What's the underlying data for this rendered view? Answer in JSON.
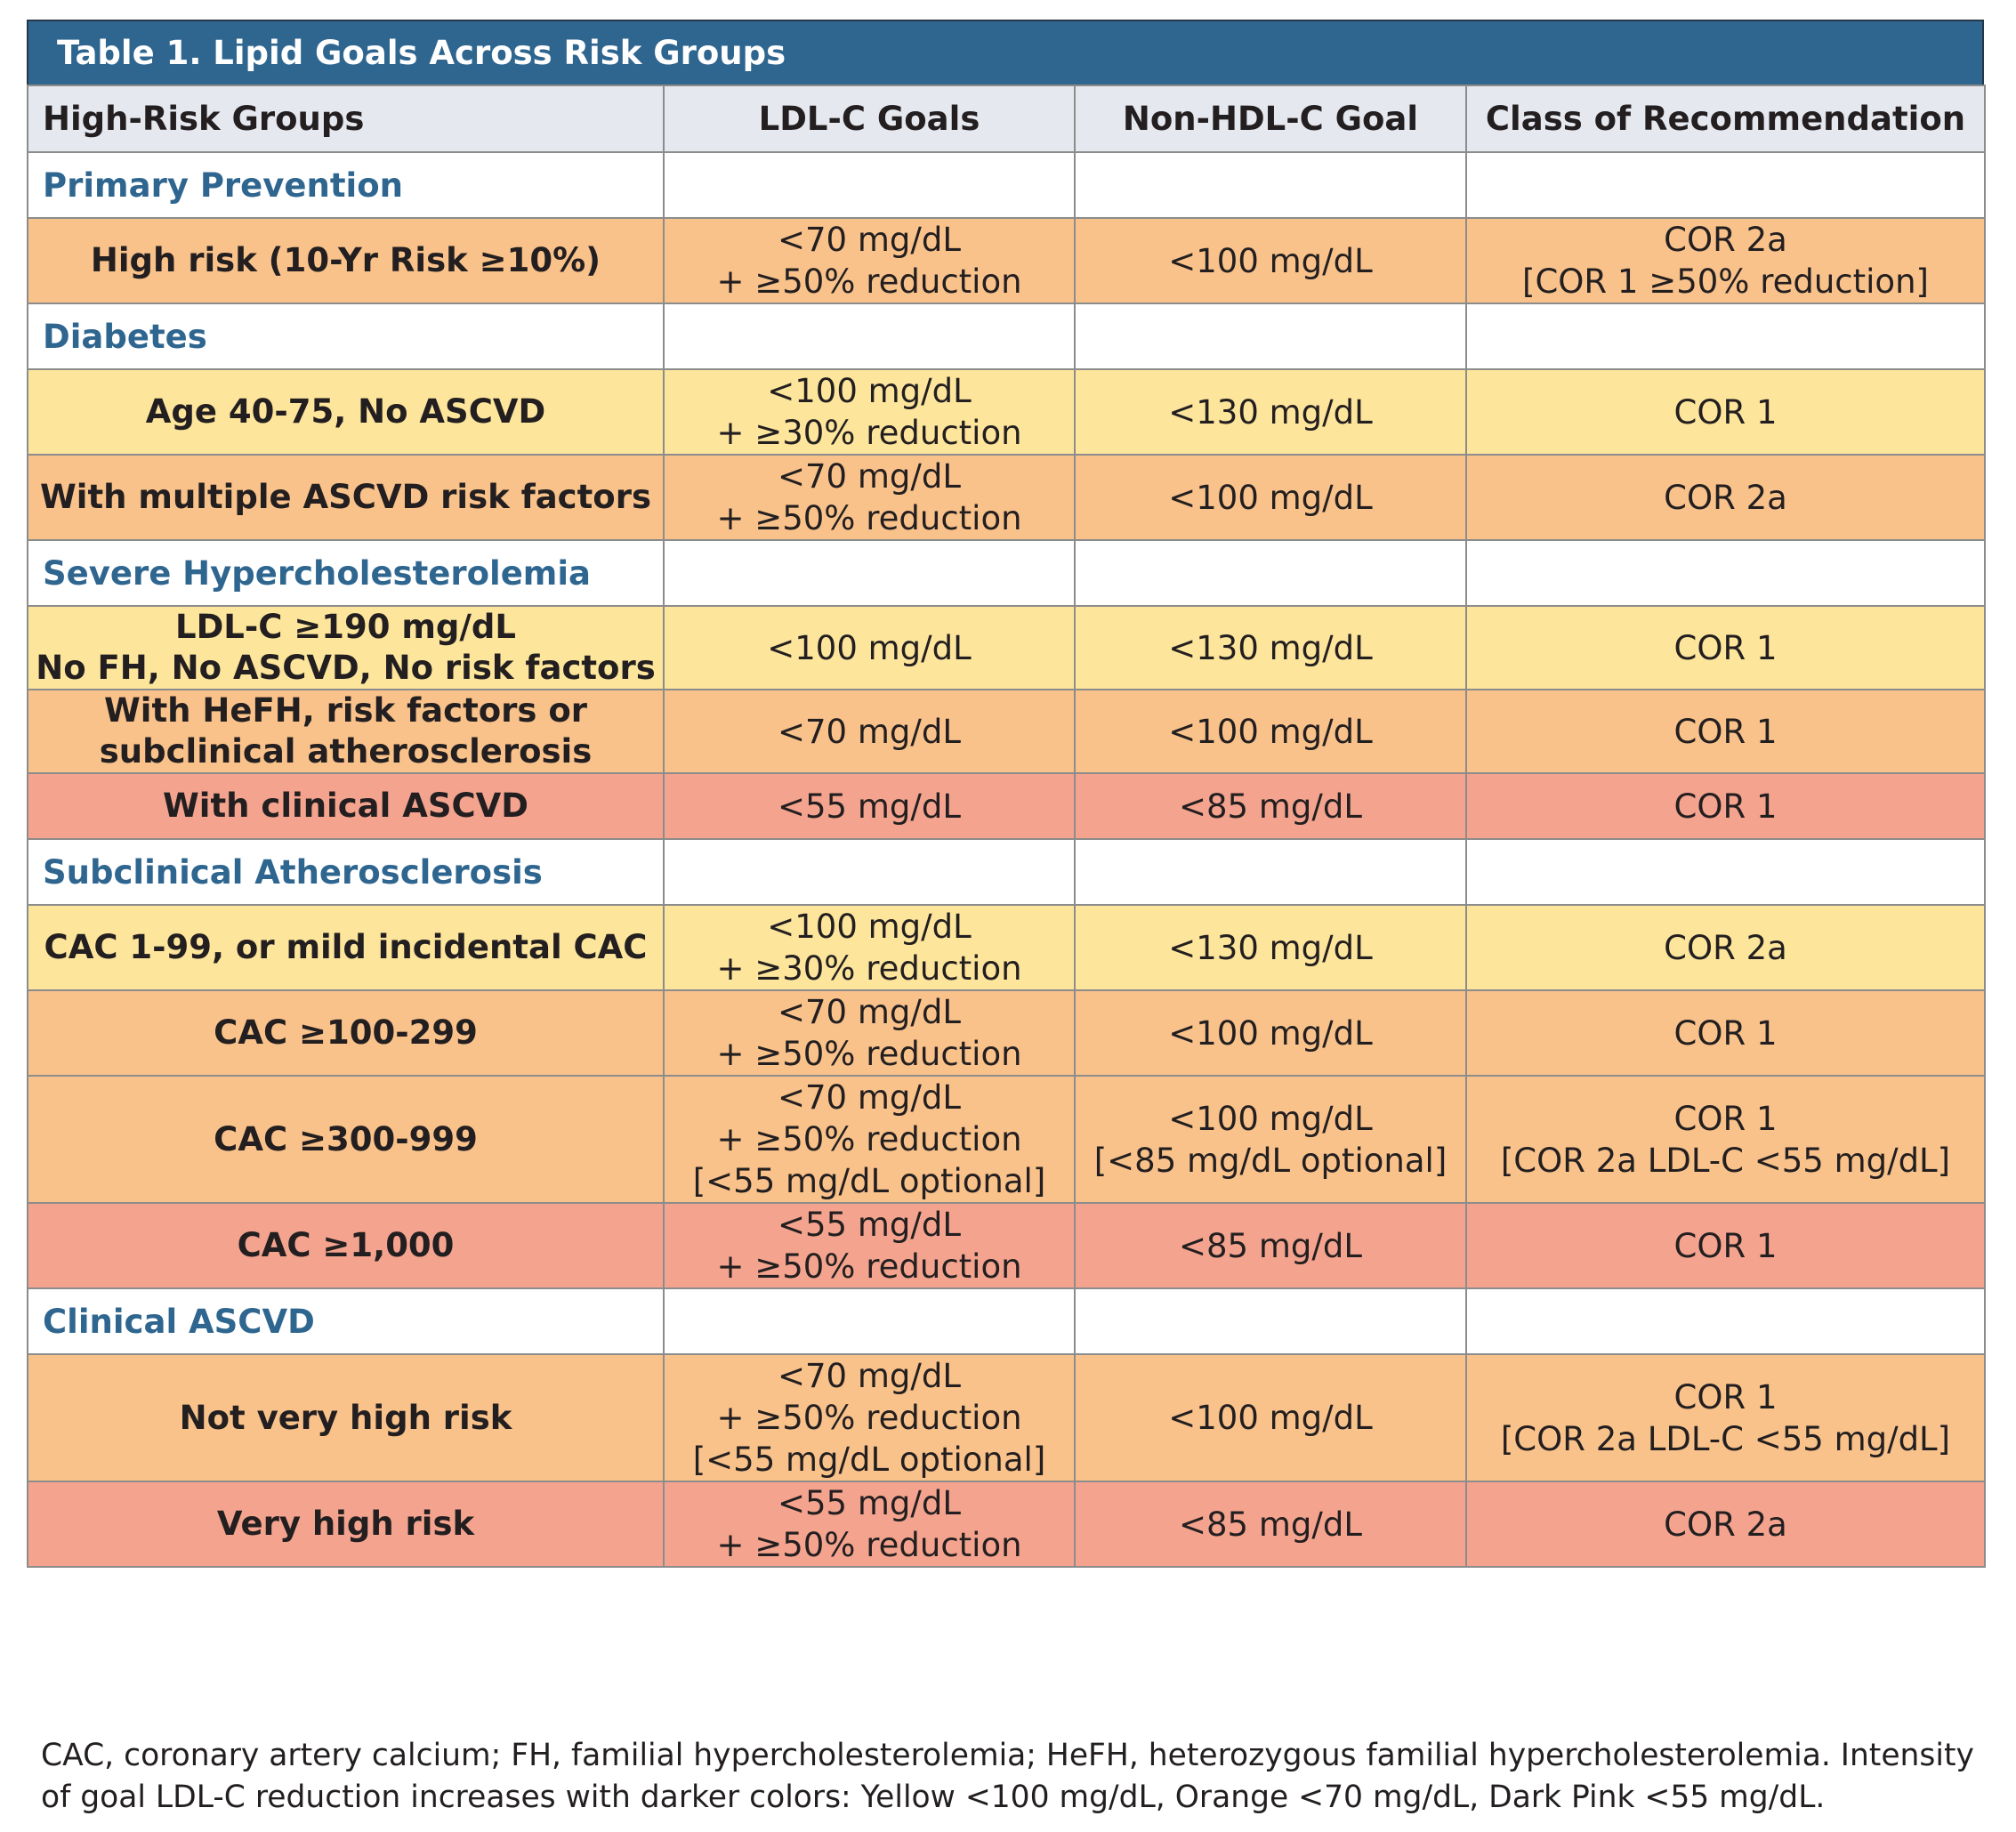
{
  "title": "Table 1. Lipid Goals Across Risk Groups",
  "headers": [
    "High-Risk Groups",
    "LDL-C Goals",
    "Non-HDL-C Goal",
    "Class of Recommendation"
  ],
  "sections": [
    {
      "name": "Primary Prevention",
      "rows": [
        {
          "color": "orange",
          "group": [
            "High risk (10-Yr Risk ≥10%)"
          ],
          "ldl": [
            "<70 mg/dL",
            "+ ≥50% reduction"
          ],
          "nonhdl": [
            "<100 mg/dL"
          ],
          "cor": [
            "COR 2a",
            "[COR 1 ≥50% reduction]"
          ]
        }
      ]
    },
    {
      "name": "Diabetes",
      "rows": [
        {
          "color": "yellow",
          "group": [
            "Age 40-75, No ASCVD"
          ],
          "ldl": [
            "<100 mg/dL",
            "+ ≥30% reduction"
          ],
          "nonhdl": [
            "<130 mg/dL"
          ],
          "cor": [
            "COR 1"
          ]
        },
        {
          "color": "orange",
          "group": [
            "With multiple ASCVD risk factors"
          ],
          "ldl": [
            "<70 mg/dL",
            "+ ≥50% reduction"
          ],
          "nonhdl": [
            "<100 mg/dL"
          ],
          "cor": [
            "COR 2a"
          ]
        }
      ]
    },
    {
      "name": "Severe Hypercholesterolemia",
      "rows": [
        {
          "color": "yellow",
          "group": [
            "LDL-C ≥190 mg/dL",
            "No FH, No ASCVD, No risk factors"
          ],
          "ldl": [
            "<100 mg/dL"
          ],
          "nonhdl": [
            "<130 mg/dL"
          ],
          "cor": [
            "COR 1"
          ]
        },
        {
          "color": "orange",
          "group": [
            "With HeFH, risk factors or",
            "subclinical atherosclerosis"
          ],
          "ldl": [
            "<70 mg/dL"
          ],
          "nonhdl": [
            "<100 mg/dL"
          ],
          "cor": [
            "COR 1"
          ]
        },
        {
          "color": "pink",
          "group": [
            "With clinical ASCVD"
          ],
          "ldl": [
            "<55 mg/dL"
          ],
          "nonhdl": [
            "<85 mg/dL"
          ],
          "cor": [
            "COR 1"
          ]
        }
      ]
    },
    {
      "name": "Subclinical Atherosclerosis",
      "rows": [
        {
          "color": "yellow",
          "group": [
            "CAC 1-99, or mild incidental CAC"
          ],
          "ldl": [
            "<100 mg/dL",
            "+ ≥30% reduction"
          ],
          "nonhdl": [
            "<130 mg/dL"
          ],
          "cor": [
            "COR 2a"
          ]
        },
        {
          "color": "orange",
          "group": [
            "CAC ≥100-299"
          ],
          "ldl": [
            "<70 mg/dL",
            "+ ≥50% reduction"
          ],
          "nonhdl": [
            "<100 mg/dL"
          ],
          "cor": [
            "COR 1"
          ]
        },
        {
          "color": "orange",
          "group": [
            "CAC ≥300-999"
          ],
          "ldl": [
            "<70 mg/dL",
            "+ ≥50% reduction",
            "[<55 mg/dL optional]"
          ],
          "nonhdl": [
            "<100 mg/dL",
            "[<85 mg/dL optional]"
          ],
          "cor": [
            "COR 1",
            "[COR 2a LDL-C <55 mg/dL]"
          ]
        },
        {
          "color": "pink",
          "group": [
            "CAC ≥1,000"
          ],
          "ldl": [
            "<55 mg/dL",
            "+ ≥50% reduction"
          ],
          "nonhdl": [
            "<85 mg/dL"
          ],
          "cor": [
            "COR 1"
          ]
        }
      ]
    },
    {
      "name": "Clinical ASCVD",
      "rows": [
        {
          "color": "orange",
          "group": [
            "Not very high risk"
          ],
          "ldl": [
            "<70 mg/dL",
            "+ ≥50% reduction",
            "[<55 mg/dL optional]"
          ],
          "nonhdl": [
            "<100 mg/dL"
          ],
          "cor": [
            "COR 1",
            "[COR 2a LDL-C <55 mg/dL]"
          ]
        },
        {
          "color": "pink",
          "group": [
            "Very high risk"
          ],
          "ldl": [
            "<55 mg/dL",
            "+ ≥50% reduction"
          ],
          "nonhdl": [
            "<85 mg/dL"
          ],
          "cor": [
            "COR 2a"
          ]
        }
      ]
    }
  ],
  "footnote": [
    "CAC, coronary artery calcium; FH, familial hypercholesterolemia; HeFH, heterozygous familial hypercholesterolemia. Intensity",
    "of goal LDL-C reduction increases with darker colors: Yellow <100 mg/dL, Orange <70 mg/dL, Dark Pink <55 mg/dL."
  ],
  "colors": {
    "title_bar": "#2f6690",
    "header_bg": "#e6e8ef",
    "section_text": "#2f6690",
    "yellow": "#fde59c",
    "orange": "#f9c28b",
    "pink": "#f4a48e"
  }
}
